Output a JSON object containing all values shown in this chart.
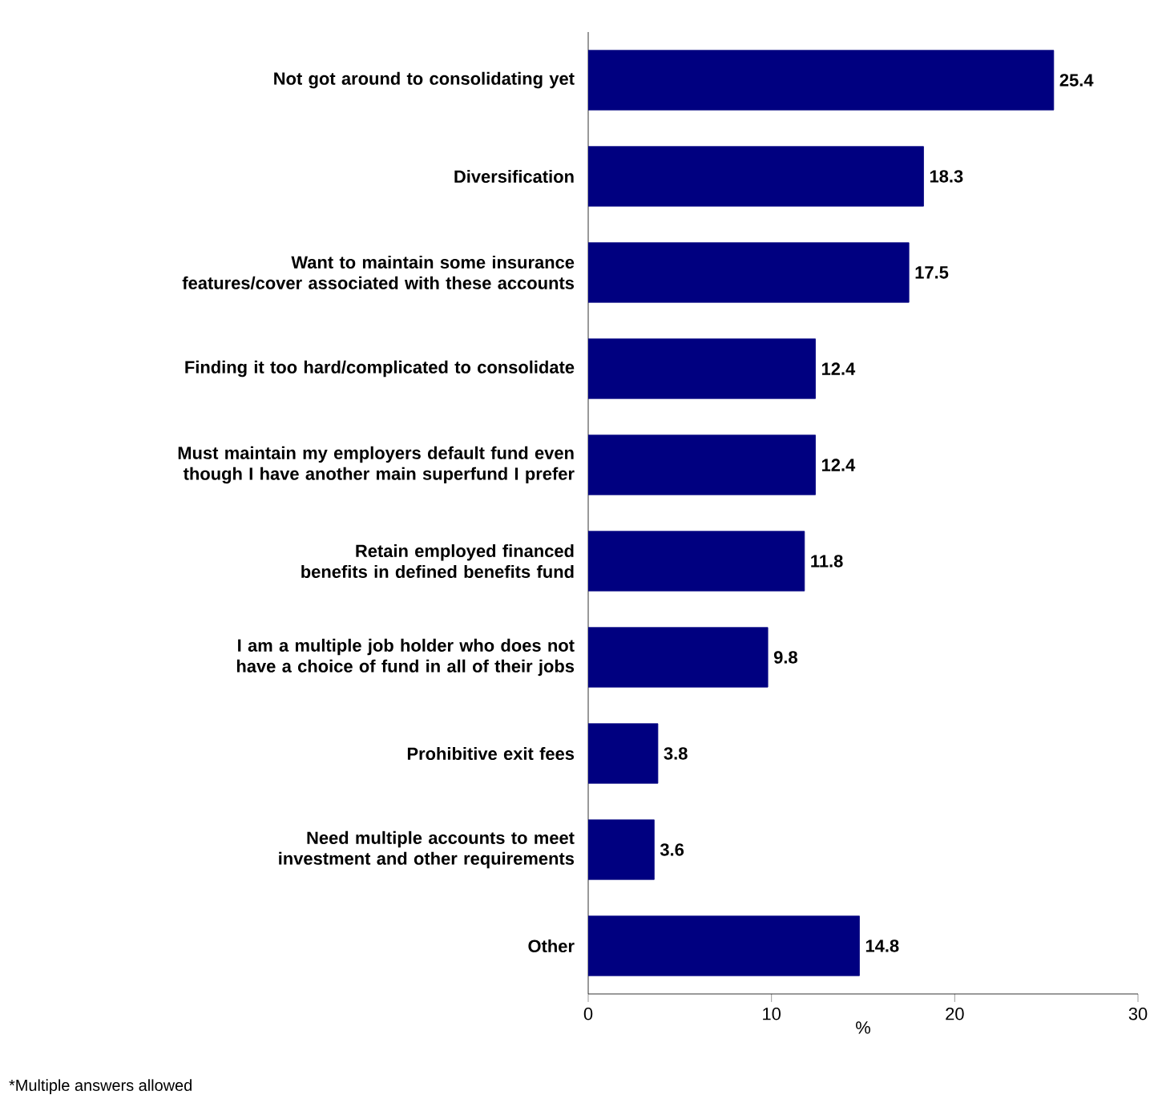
{
  "chart_data": {
    "type": "bar",
    "orientation": "horizontal",
    "categories": [
      "Not got around to consolidating yet",
      "Diversification",
      "Want to maintain some insurance features/cover associated with these accounts",
      "Finding it too hard/complicated to consolidate",
      "Must maintain my employers default fund even though I have another main superfund I prefer",
      "Retain employed financed benefits in defined benefits fund",
      "I am a multiple job holder who does not have a choice of fund in all of their jobs",
      "Prohibitive exit fees",
      "Need multiple accounts to meet investment and other requirements",
      "Other"
    ],
    "values": [
      25.4,
      18.3,
      17.5,
      12.4,
      12.4,
      11.8,
      9.8,
      3.8,
      3.6,
      14.8
    ],
    "color": "#000080",
    "data_labels": true,
    "xlim": [
      0,
      30
    ],
    "xticks": [
      0,
      10,
      20,
      30
    ],
    "xlabel": "%",
    "grid": false,
    "annotations": [
      "*Multiple answers allowed"
    ]
  }
}
